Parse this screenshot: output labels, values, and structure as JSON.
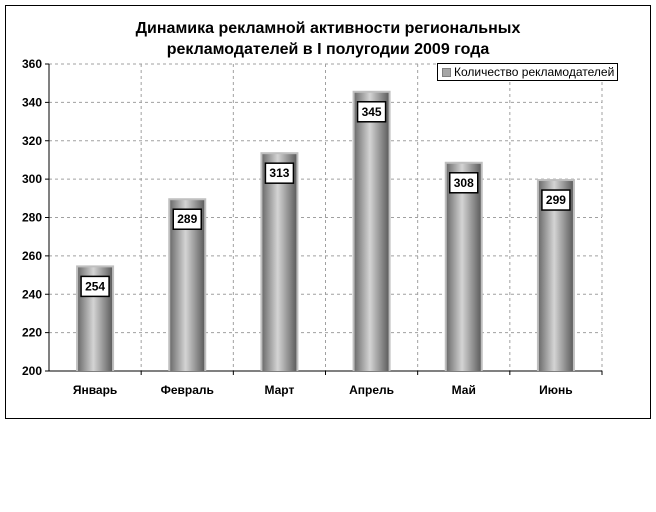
{
  "chart_data": {
    "type": "bar",
    "title_lines": [
      "Динамика рекламной активности региональных",
      "рекламодателей в I полугодии 2009 года"
    ],
    "categories": [
      "Январь",
      "Февраль",
      "Март",
      "Апрель",
      "Май",
      "Июнь"
    ],
    "series": [
      {
        "name": "Количество рекламодателей",
        "values": [
          254,
          289,
          313,
          345,
          308,
          299
        ]
      }
    ],
    "ylim": [
      200,
      360
    ],
    "yticks": [
      200,
      220,
      240,
      260,
      280,
      300,
      320,
      340,
      360
    ],
    "xlabel": "",
    "ylabel": "",
    "grid": true,
    "legend": "top-right",
    "colors": {
      "bar_dark": "#6e6e6e",
      "bar_light": "#d4d4d4",
      "bar_border": "#bfbfbf",
      "grid": "#a0a0a0"
    }
  }
}
